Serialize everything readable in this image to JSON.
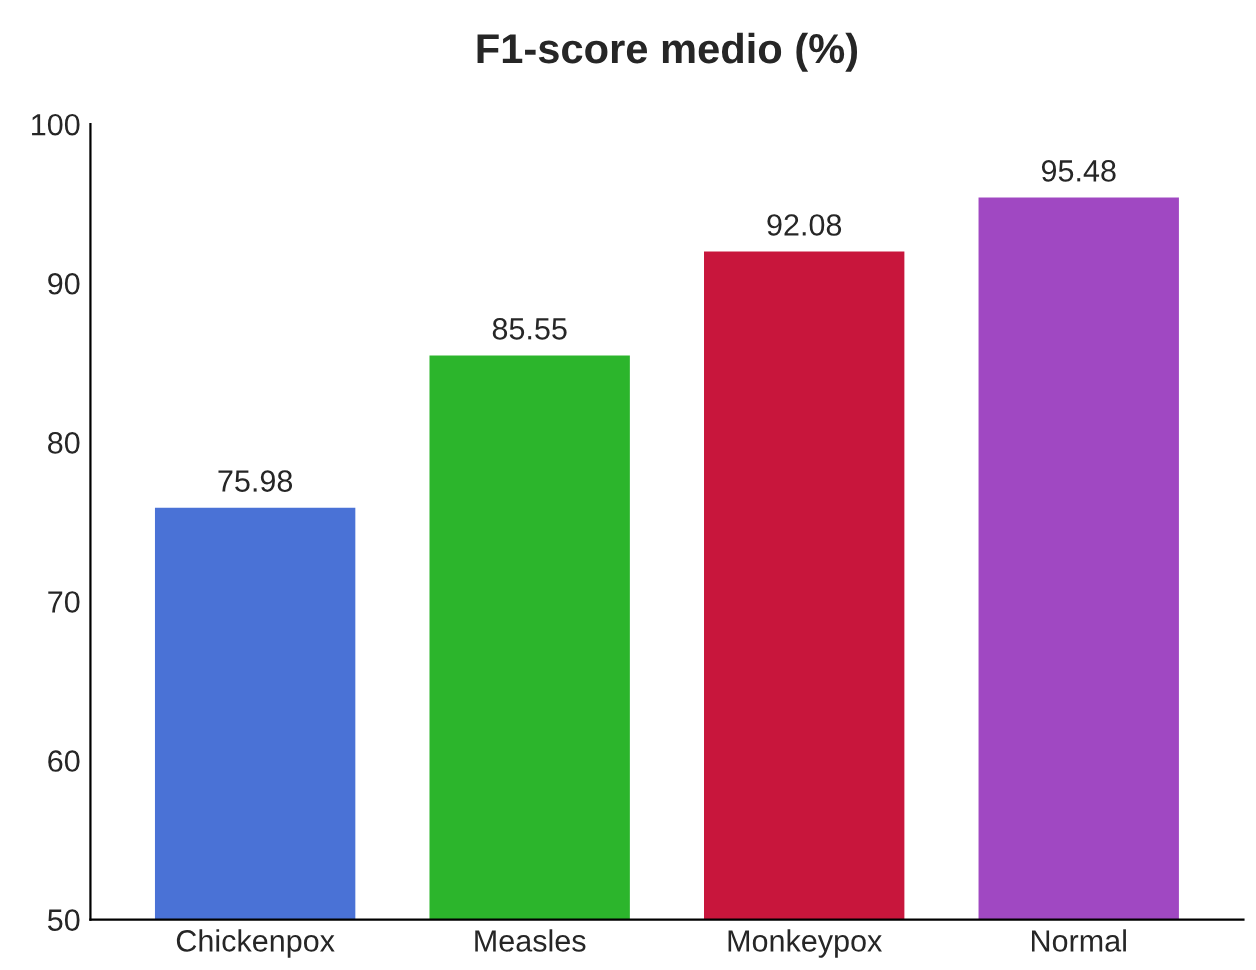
{
  "chart_data": {
    "type": "bar",
    "title": "F1-score medio (%)",
    "categories": [
      "Chickenpox",
      "Measles",
      "Monkeypox",
      "Normal"
    ],
    "values": [
      75.98,
      85.55,
      92.08,
      95.48
    ],
    "colors": [
      "#4a72d6",
      "#2cb52c",
      "#c8163c",
      "#a048c2"
    ],
    "ylim": [
      50,
      100
    ],
    "yticks": [
      50,
      60,
      70,
      80,
      90,
      100
    ],
    "data_labels": true,
    "grid": false,
    "legend": false
  }
}
